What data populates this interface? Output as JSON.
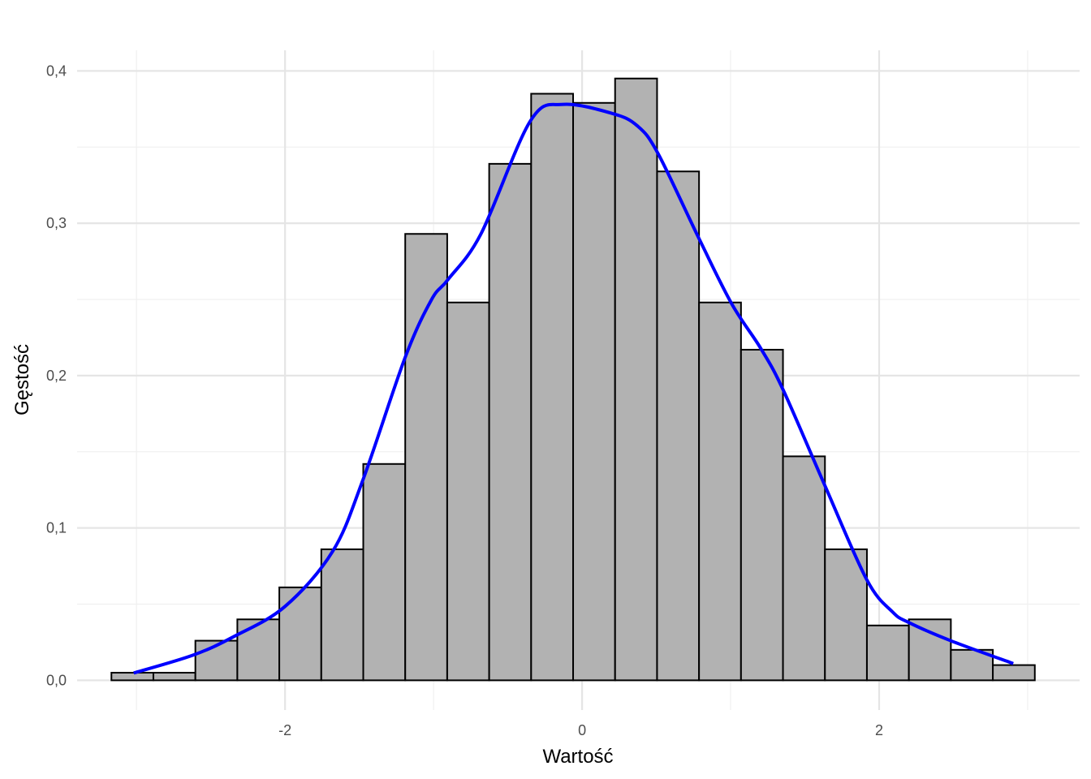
{
  "chart_data": {
    "type": "bar",
    "title": "",
    "xlabel": "Wartość",
    "ylabel": "Gęstość",
    "xlim": [
      -3.4,
      3.35
    ],
    "ylim": [
      -0.0195,
      0.4135
    ],
    "x_ticks": [
      -2,
      0,
      2
    ],
    "x_tick_labels": [
      "-2",
      "0",
      "2"
    ],
    "y_ticks": [
      0,
      0.1,
      0.2,
      0.3,
      0.4
    ],
    "y_tick_labels": [
      "0,0",
      "0,1",
      "0,2",
      "0,3",
      "0,4"
    ],
    "grid": true,
    "histogram": {
      "bin_start": -3.169,
      "bin_width": 0.2826,
      "fill": "#b2b2b2",
      "edge": "#000000",
      "values": [
        0.005,
        0.005,
        0.026,
        0.04,
        0.061,
        0.086,
        0.142,
        0.293,
        0.248,
        0.339,
        0.385,
        0.379,
        0.395,
        0.334,
        0.248,
        0.217,
        0.147,
        0.086,
        0.036,
        0.04,
        0.02,
        0.01
      ]
    },
    "density": {
      "color": "#0000ff",
      "x": [
        -3.019,
        -2.62,
        -2.343,
        -2.0,
        -1.679,
        -1.474,
        -1.191,
        -1.014,
        -0.903,
        -0.681,
        -0.349,
        -0.127,
        0.205,
        0.371,
        0.51,
        0.787,
        1.008,
        1.202,
        1.352,
        1.634,
        1.917,
        2.089,
        2.199,
        2.482,
        2.903
      ],
      "y": [
        0.0048,
        0.0165,
        0.0288,
        0.0485,
        0.0847,
        0.132,
        0.212,
        0.2498,
        0.263,
        0.293,
        0.367,
        0.378,
        0.372,
        0.364,
        0.346,
        0.29,
        0.247,
        0.218,
        0.191,
        0.128,
        0.066,
        0.045,
        0.038,
        0.026,
        0.011
      ]
    }
  }
}
